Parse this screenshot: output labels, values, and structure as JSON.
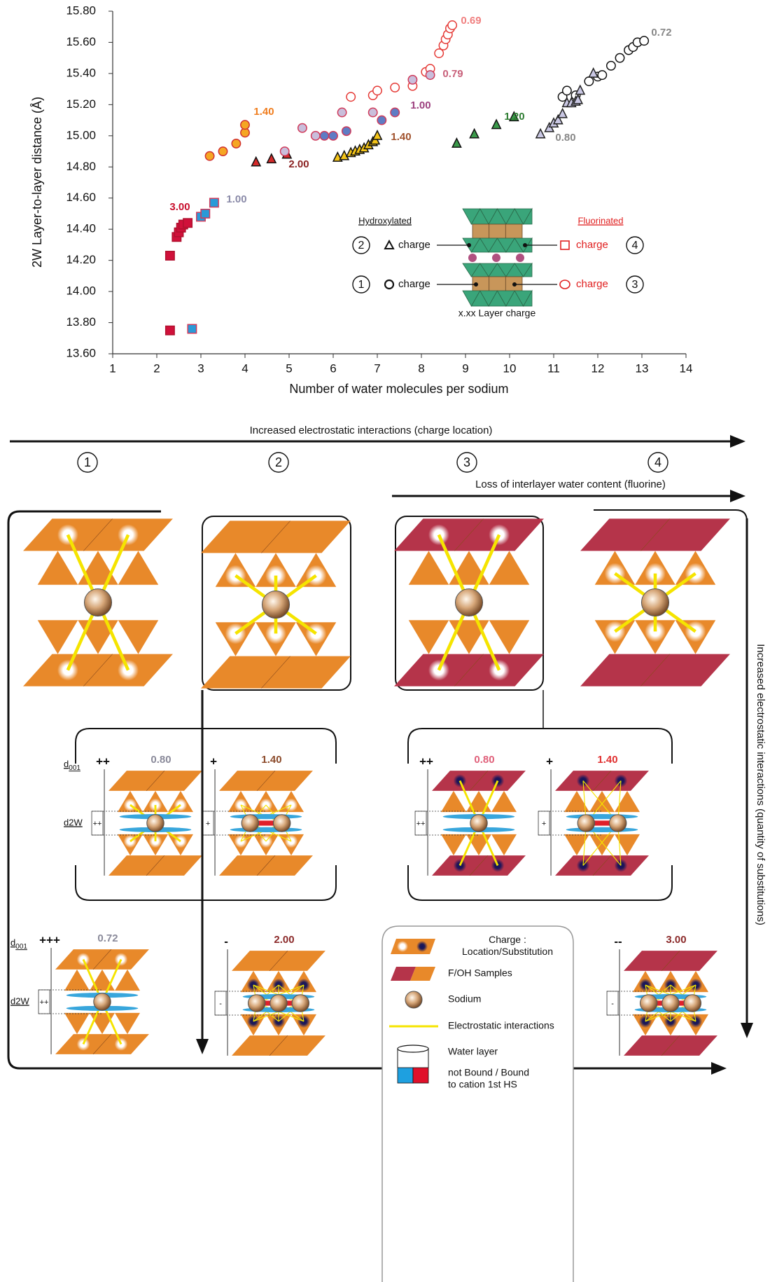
{
  "chart_data": {
    "type": "scatter",
    "x_label": "Number of water molecules per sodium",
    "y_label": "2W Layer-to-layer distance (Å)",
    "xlim": [
      1,
      14
    ],
    "xticks": [
      1,
      2,
      3,
      4,
      5,
      6,
      7,
      8,
      9,
      10,
      11,
      12,
      13,
      14
    ],
    "ylim": [
      13.6,
      15.8
    ],
    "yticks": [
      {
        "value": 13.6,
        "label": "13.60"
      },
      {
        "value": 13.8,
        "label": "13.80"
      },
      {
        "value": 14.0,
        "label": "14.00"
      },
      {
        "value": 14.2,
        "label": "14.20"
      },
      {
        "value": 14.4,
        "label": "14.40"
      },
      {
        "value": 14.6,
        "label": "14.60"
      },
      {
        "value": 14.8,
        "label": "14.80"
      },
      {
        "value": 15.0,
        "label": "15.00"
      },
      {
        "value": 15.2,
        "label": "15.20"
      },
      {
        "value": 15.4,
        "label": "15.40"
      },
      {
        "value": 15.6,
        "label": "15.60"
      },
      {
        "value": 15.8,
        "label": "15.80"
      }
    ],
    "series": [
      {
        "name": "0.72",
        "marker": "circle",
        "color": "#111111",
        "fill": "#ffffff",
        "label_color": "#888888",
        "x": [
          11.2,
          11.3,
          11.5,
          11.8,
          12.0,
          12.1,
          12.3,
          12.5,
          12.7,
          12.8,
          12.9,
          13.05
        ],
        "values": [
          15.25,
          15.29,
          15.26,
          15.35,
          15.38,
          15.39,
          15.45,
          15.5,
          15.55,
          15.57,
          15.6,
          15.61
        ]
      },
      {
        "name": "0.80",
        "marker": "triangle",
        "color": "#222222",
        "fill": "#c9c7e3",
        "label_color": "#888888",
        "x": [
          10.7,
          10.9,
          11.0,
          11.1,
          11.2,
          11.3,
          11.4,
          11.5,
          11.55,
          11.6,
          11.9
        ],
        "values": [
          15.01,
          15.05,
          15.08,
          15.1,
          15.14,
          15.21,
          15.21,
          15.22,
          15.23,
          15.29,
          15.4
        ]
      },
      {
        "name": "1.20",
        "marker": "triangle",
        "color": "#111111",
        "fill": "#3a9a4a",
        "label_color": "#2e7d32",
        "x": [
          8.8,
          9.2,
          9.7,
          10.1
        ],
        "values": [
          14.95,
          15.01,
          15.07,
          15.12
        ]
      },
      {
        "name": "1.40",
        "marker": "triangle",
        "color": "#111111",
        "fill": "#f5c518",
        "label_color": "#a0522d",
        "x": [
          6.1,
          6.25,
          6.4,
          6.5,
          6.6,
          6.7,
          6.8,
          6.9,
          6.95,
          7.0
        ],
        "values": [
          14.86,
          14.87,
          14.89,
          14.9,
          14.91,
          14.92,
          14.94,
          14.96,
          14.97,
          15.0
        ]
      },
      {
        "name": "2.00",
        "marker": "triangle",
        "color": "#111111",
        "fill": "#d42a2a",
        "label_color": "#8b2323",
        "x": [
          4.25,
          4.6,
          4.95
        ],
        "values": [
          14.83,
          14.85,
          14.88
        ]
      },
      {
        "name": "0.69",
        "marker": "circle",
        "color": "#e53935",
        "fill": "#ffffff",
        "label_color": "#f08080",
        "x": [
          6.4,
          6.9,
          7.0,
          7.4,
          7.8,
          8.1,
          8.2,
          8.4,
          8.5,
          8.55,
          8.6,
          8.65,
          8.7
        ],
        "values": [
          15.25,
          15.26,
          15.29,
          15.31,
          15.32,
          15.41,
          15.43,
          15.53,
          15.58,
          15.62,
          15.65,
          15.69,
          15.71
        ]
      },
      {
        "name": "0.79",
        "marker": "circle",
        "color": "#d03a5a",
        "fill": "#c9bedb",
        "label_color": "#c8607a",
        "x": [
          4.9,
          5.3,
          5.6,
          6.2,
          6.9,
          7.8,
          8.2
        ],
        "values": [
          14.9,
          15.05,
          15.0,
          15.15,
          15.15,
          15.36,
          15.39
        ]
      },
      {
        "name": "1.00",
        "marker": "circle",
        "color": "#d03a5a",
        "fill": "#5f7cc4",
        "label_color": "#9c3f7e",
        "x": [
          5.8,
          6.0,
          6.3,
          7.1,
          7.4
        ],
        "values": [
          15.0,
          15.0,
          15.03,
          15.1,
          15.15
        ]
      },
      {
        "name": "1.40",
        "marker": "circle",
        "color": "#d03030",
        "fill": "#f5a623",
        "label_color": "#f07d1e",
        "x": [
          3.2,
          3.5,
          3.8,
          4.0,
          4.0
        ],
        "values": [
          14.87,
          14.9,
          14.95,
          15.02,
          15.07
        ]
      },
      {
        "name": "3.00",
        "marker": "square",
        "color": "#b0102e",
        "fill": "#d0103a",
        "label_color": "#c8102e",
        "x": [
          2.3,
          2.3,
          2.45,
          2.5,
          2.55,
          2.6,
          2.7
        ],
        "values": [
          13.75,
          14.23,
          14.35,
          14.38,
          14.41,
          14.43,
          14.44
        ]
      },
      {
        "name": "1.00",
        "marker": "square",
        "color": "#d03a5a",
        "fill": "#2a9ad8",
        "label_color": "#8a8aa8",
        "x": [
          2.8,
          3.0,
          3.1,
          3.3
        ],
        "values": [
          13.76,
          14.48,
          14.5,
          14.57
        ]
      }
    ],
    "inset": {
      "left_title": "Hydroxylated",
      "right_title": "Fluorinated",
      "charge": "charge",
      "numbers": [
        "1",
        "2",
        "3",
        "4"
      ],
      "caption": "x.xx Layer charge"
    }
  },
  "diagram": {
    "top_arrow": "Increased electrostatic interactions (charge location)",
    "middle_arrow": "Loss of interlayer water content (fluorine)",
    "side_arrow": "Increased electrostatic interactions (quantity of substitutions)",
    "columns": [
      "1",
      "2",
      "3",
      "4"
    ],
    "spacing": {
      "d": "d",
      "d_sub": "001",
      "d2w": "d2W"
    },
    "structures": [
      {
        "charge": "0.80",
        "color": "#8a8a9a",
        "sign": "++",
        "inner_sign": "++"
      },
      {
        "charge": "1.40",
        "color": "#8b4a2a",
        "sign": "+",
        "inner_sign": "+"
      },
      {
        "charge": "0.80",
        "color": "#e0607a",
        "sign": "++",
        "inner_sign": "++"
      },
      {
        "charge": "1.40",
        "color": "#e03030",
        "sign": "+",
        "inner_sign": "+"
      },
      {
        "charge": "0.72",
        "color": "#8a8a9a",
        "sign": "+++",
        "inner_sign": "++"
      },
      {
        "charge": "2.00",
        "color": "#8b2a2a",
        "sign": "-",
        "inner_sign": "-"
      },
      {
        "charge": "3.00",
        "color": "#8b2a2a",
        "sign": "--",
        "inner_sign": "-"
      }
    ],
    "legend": [
      {
        "lines": [
          "Charge :",
          "Location/Substitution"
        ]
      },
      {
        "lines": [
          "F/OH Samples"
        ]
      },
      {
        "lines": [
          "Sodium"
        ]
      },
      {
        "lines": [
          "Electrostatic interactions"
        ]
      },
      {
        "lines": [
          "Water layer"
        ]
      },
      {
        "lines": [
          "not Bound / Bound",
          "to cation 1st HS"
        ]
      }
    ]
  }
}
